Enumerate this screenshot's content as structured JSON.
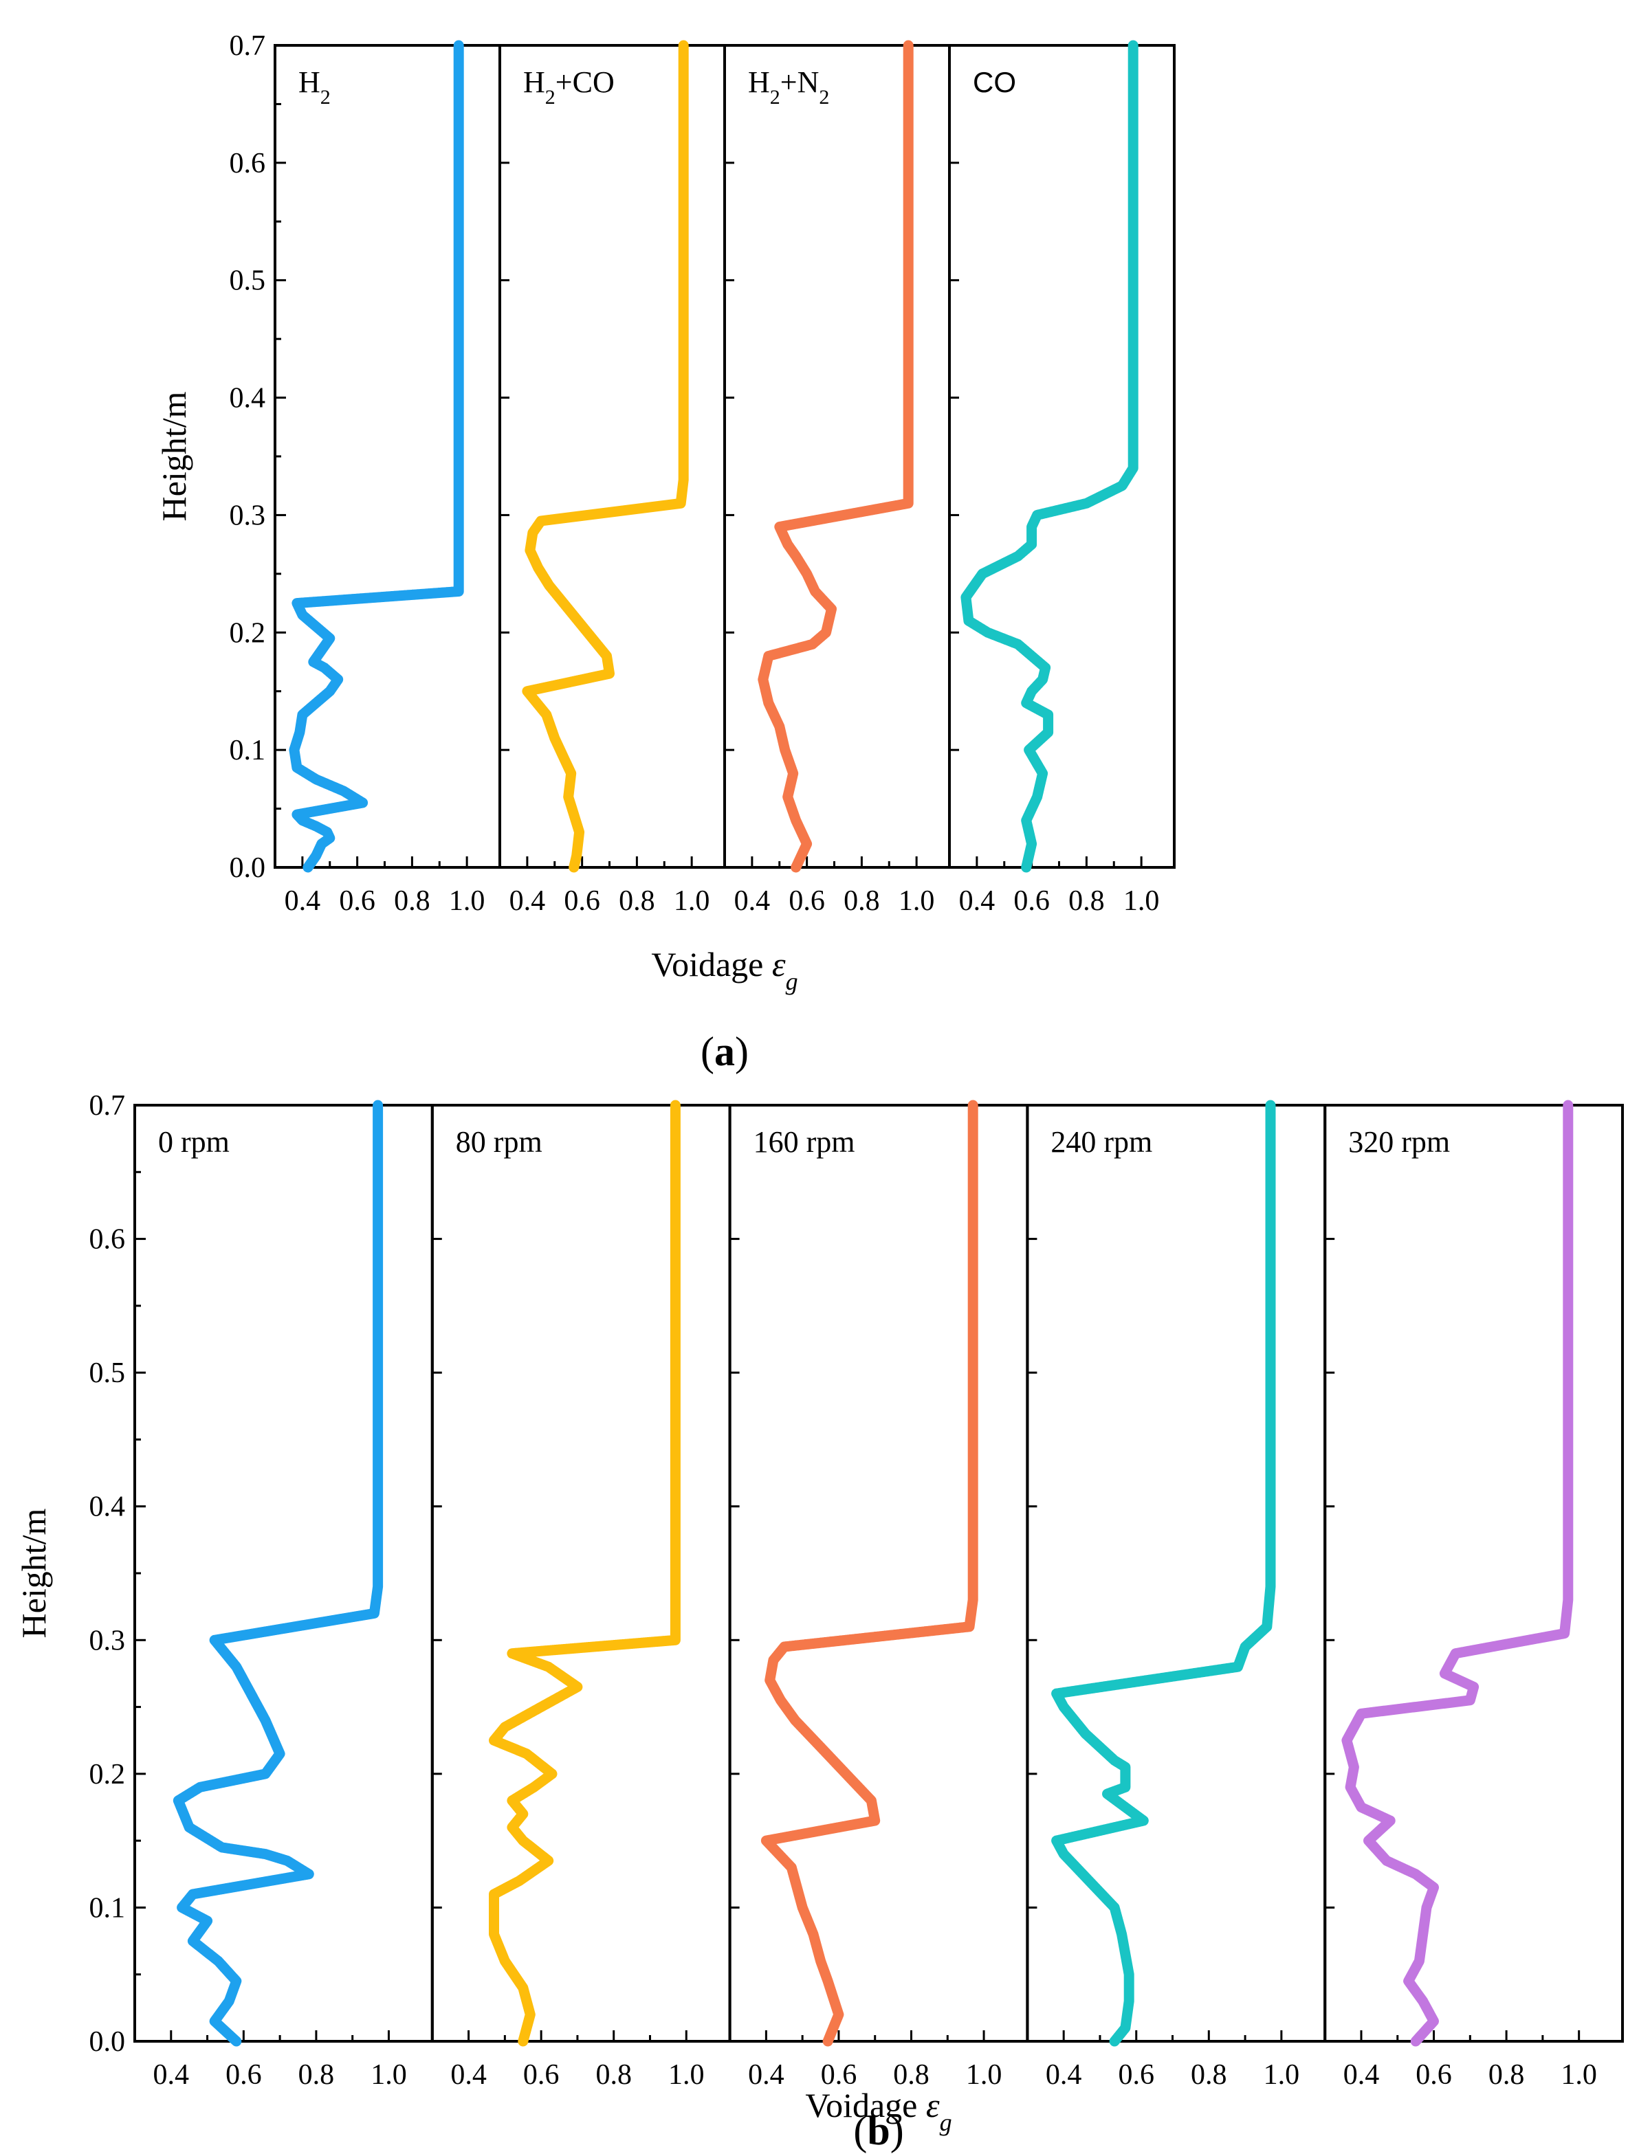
{
  "figure": {
    "caption_a": "a",
    "caption_b": "b"
  },
  "chart_data": [
    {
      "type": "line",
      "id": "a",
      "caption": "a",
      "xlabel": "Voidage",
      "xlabel_symbol": "ε",
      "xlabel_subscript": "g",
      "ylabel": "Height/m",
      "ylim": [
        0,
        0.7
      ],
      "yticks": [
        "0.0",
        "0.1",
        "0.2",
        "0.3",
        "0.4",
        "0.5",
        "0.6",
        "0.7"
      ],
      "xticks": [
        "0.4",
        "0.6",
        "0.8",
        "1.0"
      ],
      "xlim": [
        0.3,
        1.12
      ],
      "panels": [
        {
          "label_main": "H",
          "label_parts": [
            {
              "t": "H"
            },
            {
              "t": "2",
              "sub": true
            }
          ],
          "font": "serif",
          "color": "#1ea1ee",
          "points": [
            [
              0.42,
              0.0
            ],
            [
              0.45,
              0.01
            ],
            [
              0.47,
              0.02
            ],
            [
              0.5,
              0.025
            ],
            [
              0.49,
              0.03
            ],
            [
              0.45,
              0.035
            ],
            [
              0.4,
              0.04
            ],
            [
              0.38,
              0.045
            ],
            [
              0.62,
              0.055
            ],
            [
              0.55,
              0.065
            ],
            [
              0.45,
              0.075
            ],
            [
              0.38,
              0.085
            ],
            [
              0.37,
              0.1
            ],
            [
              0.39,
              0.115
            ],
            [
              0.4,
              0.13
            ],
            [
              0.45,
              0.14
            ],
            [
              0.5,
              0.15
            ],
            [
              0.53,
              0.16
            ],
            [
              0.48,
              0.17
            ],
            [
              0.44,
              0.175
            ],
            [
              0.47,
              0.185
            ],
            [
              0.5,
              0.195
            ],
            [
              0.45,
              0.205
            ],
            [
              0.4,
              0.215
            ],
            [
              0.38,
              0.225
            ],
            [
              0.97,
              0.235
            ],
            [
              0.97,
              0.26
            ],
            [
              0.97,
              0.4
            ],
            [
              0.97,
              0.7
            ]
          ]
        },
        {
          "label_main": "H+CO",
          "label_parts": [
            {
              "t": "H"
            },
            {
              "t": "2",
              "sub": true
            },
            {
              "t": "+CO"
            }
          ],
          "font": "serif",
          "color": "#fdbd0c",
          "points": [
            [
              0.57,
              0.0
            ],
            [
              0.58,
              0.01
            ],
            [
              0.59,
              0.03
            ],
            [
              0.57,
              0.045
            ],
            [
              0.55,
              0.06
            ],
            [
              0.56,
              0.08
            ],
            [
              0.53,
              0.095
            ],
            [
              0.5,
              0.11
            ],
            [
              0.47,
              0.13
            ],
            [
              0.4,
              0.15
            ],
            [
              0.5,
              0.155
            ],
            [
              0.7,
              0.165
            ],
            [
              0.69,
              0.18
            ],
            [
              0.62,
              0.2
            ],
            [
              0.55,
              0.22
            ],
            [
              0.48,
              0.24
            ],
            [
              0.44,
              0.255
            ],
            [
              0.41,
              0.27
            ],
            [
              0.42,
              0.285
            ],
            [
              0.45,
              0.295
            ],
            [
              0.96,
              0.31
            ],
            [
              0.97,
              0.33
            ],
            [
              0.97,
              0.4
            ],
            [
              0.97,
              0.7
            ]
          ]
        },
        {
          "label_main": "H+N",
          "label_parts": [
            {
              "t": "H"
            },
            {
              "t": "2",
              "sub": true
            },
            {
              "t": "+N"
            },
            {
              "t": "2",
              "sub": true
            }
          ],
          "font": "serif",
          "color": "#f5784a",
          "points": [
            [
              0.56,
              0.0
            ],
            [
              0.6,
              0.02
            ],
            [
              0.56,
              0.04
            ],
            [
              0.53,
              0.06
            ],
            [
              0.55,
              0.08
            ],
            [
              0.52,
              0.1
            ],
            [
              0.5,
              0.12
            ],
            [
              0.46,
              0.14
            ],
            [
              0.44,
              0.16
            ],
            [
              0.46,
              0.18
            ],
            [
              0.62,
              0.19
            ],
            [
              0.67,
              0.2
            ],
            [
              0.69,
              0.22
            ],
            [
              0.63,
              0.235
            ],
            [
              0.6,
              0.25
            ],
            [
              0.56,
              0.265
            ],
            [
              0.53,
              0.275
            ],
            [
              0.5,
              0.29
            ],
            [
              0.97,
              0.31
            ],
            [
              0.97,
              0.33
            ],
            [
              0.97,
              0.4
            ],
            [
              0.97,
              0.7
            ]
          ]
        },
        {
          "label_main": "CO",
          "label_parts": [
            {
              "t": "CO"
            }
          ],
          "font": "sans",
          "color": "#19c4c4",
          "points": [
            [
              0.58,
              0.0
            ],
            [
              0.6,
              0.02
            ],
            [
              0.58,
              0.04
            ],
            [
              0.62,
              0.06
            ],
            [
              0.64,
              0.08
            ],
            [
              0.59,
              0.1
            ],
            [
              0.66,
              0.115
            ],
            [
              0.66,
              0.13
            ],
            [
              0.58,
              0.14
            ],
            [
              0.6,
              0.15
            ],
            [
              0.64,
              0.16
            ],
            [
              0.65,
              0.17
            ],
            [
              0.55,
              0.19
            ],
            [
              0.44,
              0.2
            ],
            [
              0.37,
              0.21
            ],
            [
              0.36,
              0.23
            ],
            [
              0.42,
              0.25
            ],
            [
              0.55,
              0.265
            ],
            [
              0.6,
              0.275
            ],
            [
              0.6,
              0.29
            ],
            [
              0.62,
              0.3
            ],
            [
              0.8,
              0.31
            ],
            [
              0.93,
              0.325
            ],
            [
              0.97,
              0.34
            ],
            [
              0.97,
              0.4
            ],
            [
              0.97,
              0.7
            ]
          ]
        }
      ]
    },
    {
      "type": "line",
      "id": "b",
      "caption": "b",
      "xlabel": "Voidage",
      "xlabel_symbol": "ε",
      "xlabel_subscript": "g",
      "ylabel": "Height/m",
      "ylim": [
        0,
        0.7
      ],
      "yticks": [
        "0.0",
        "0.1",
        "0.2",
        "0.3",
        "0.4",
        "0.5",
        "0.6",
        "0.7"
      ],
      "xticks": [
        "0.4",
        "0.6",
        "0.8",
        "1.0"
      ],
      "xlim": [
        0.3,
        1.12
      ],
      "panels": [
        {
          "label_main": "0 rpm",
          "label_parts": [
            {
              "t": "0 rpm"
            }
          ],
          "font": "serif",
          "color": "#1ea1ee",
          "points": [
            [
              0.58,
              0.0
            ],
            [
              0.52,
              0.015
            ],
            [
              0.56,
              0.03
            ],
            [
              0.58,
              0.045
            ],
            [
              0.53,
              0.06
            ],
            [
              0.46,
              0.075
            ],
            [
              0.5,
              0.09
            ],
            [
              0.43,
              0.1
            ],
            [
              0.46,
              0.11
            ],
            [
              0.78,
              0.125
            ],
            [
              0.72,
              0.135
            ],
            [
              0.66,
              0.14
            ],
            [
              0.54,
              0.145
            ],
            [
              0.45,
              0.16
            ],
            [
              0.42,
              0.18
            ],
            [
              0.48,
              0.19
            ],
            [
              0.66,
              0.2
            ],
            [
              0.7,
              0.215
            ],
            [
              0.66,
              0.24
            ],
            [
              0.62,
              0.26
            ],
            [
              0.58,
              0.28
            ],
            [
              0.52,
              0.3
            ],
            [
              0.96,
              0.32
            ],
            [
              0.97,
              0.34
            ],
            [
              0.97,
              0.4
            ],
            [
              0.97,
              0.7
            ]
          ]
        },
        {
          "label_main": "80 rpm",
          "label_parts": [
            {
              "t": "80 rpm"
            }
          ],
          "font": "serif",
          "color": "#fdbd0c",
          "points": [
            [
              0.55,
              0.0
            ],
            [
              0.57,
              0.02
            ],
            [
              0.55,
              0.04
            ],
            [
              0.5,
              0.06
            ],
            [
              0.47,
              0.08
            ],
            [
              0.47,
              0.11
            ],
            [
              0.54,
              0.12
            ],
            [
              0.62,
              0.135
            ],
            [
              0.55,
              0.15
            ],
            [
              0.52,
              0.16
            ],
            [
              0.55,
              0.17
            ],
            [
              0.52,
              0.18
            ],
            [
              0.58,
              0.19
            ],
            [
              0.63,
              0.2
            ],
            [
              0.56,
              0.215
            ],
            [
              0.47,
              0.225
            ],
            [
              0.5,
              0.235
            ],
            [
              0.6,
              0.25
            ],
            [
              0.7,
              0.265
            ],
            [
              0.62,
              0.28
            ],
            [
              0.52,
              0.29
            ],
            [
              0.97,
              0.3
            ],
            [
              0.97,
              0.33
            ],
            [
              0.97,
              0.4
            ],
            [
              0.97,
              0.7
            ]
          ]
        },
        {
          "label_main": "160 rpm",
          "label_parts": [
            {
              "t": "160 rpm"
            }
          ],
          "font": "serif",
          "color": "#f5784a",
          "points": [
            [
              0.57,
              0.0
            ],
            [
              0.6,
              0.02
            ],
            [
              0.57,
              0.045
            ],
            [
              0.55,
              0.06
            ],
            [
              0.53,
              0.08
            ],
            [
              0.5,
              0.1
            ],
            [
              0.47,
              0.13
            ],
            [
              0.4,
              0.15
            ],
            [
              0.5,
              0.155
            ],
            [
              0.7,
              0.165
            ],
            [
              0.69,
              0.18
            ],
            [
              0.62,
              0.2
            ],
            [
              0.55,
              0.22
            ],
            [
              0.48,
              0.24
            ],
            [
              0.44,
              0.255
            ],
            [
              0.41,
              0.27
            ],
            [
              0.42,
              0.285
            ],
            [
              0.45,
              0.295
            ],
            [
              0.96,
              0.31
            ],
            [
              0.97,
              0.33
            ],
            [
              0.97,
              0.4
            ],
            [
              0.97,
              0.7
            ]
          ]
        },
        {
          "label_main": "240 rpm",
          "label_parts": [
            {
              "t": "240 rpm"
            }
          ],
          "font": "serif",
          "color": "#19c4c4",
          "points": [
            [
              0.54,
              0.0
            ],
            [
              0.57,
              0.01
            ],
            [
              0.58,
              0.03
            ],
            [
              0.58,
              0.05
            ],
            [
              0.56,
              0.08
            ],
            [
              0.54,
              0.1
            ],
            [
              0.47,
              0.12
            ],
            [
              0.4,
              0.14
            ],
            [
              0.38,
              0.15
            ],
            [
              0.62,
              0.165
            ],
            [
              0.57,
              0.175
            ],
            [
              0.52,
              0.185
            ],
            [
              0.57,
              0.19
            ],
            [
              0.57,
              0.205
            ],
            [
              0.54,
              0.21
            ],
            [
              0.46,
              0.23
            ],
            [
              0.4,
              0.25
            ],
            [
              0.38,
              0.26
            ],
            [
              0.88,
              0.28
            ],
            [
              0.9,
              0.295
            ],
            [
              0.96,
              0.31
            ],
            [
              0.97,
              0.34
            ],
            [
              0.97,
              0.4
            ],
            [
              0.97,
              0.7
            ]
          ]
        },
        {
          "label_main": "320 rpm",
          "label_parts": [
            {
              "t": "320 rpm"
            }
          ],
          "font": "serif",
          "color": "#c277e0",
          "points": [
            [
              0.55,
              0.0
            ],
            [
              0.6,
              0.015
            ],
            [
              0.57,
              0.03
            ],
            [
              0.53,
              0.045
            ],
            [
              0.56,
              0.06
            ],
            [
              0.57,
              0.08
            ],
            [
              0.58,
              0.1
            ],
            [
              0.6,
              0.115
            ],
            [
              0.55,
              0.125
            ],
            [
              0.47,
              0.135
            ],
            [
              0.42,
              0.15
            ],
            [
              0.48,
              0.165
            ],
            [
              0.44,
              0.17
            ],
            [
              0.4,
              0.175
            ],
            [
              0.37,
              0.19
            ],
            [
              0.38,
              0.205
            ],
            [
              0.36,
              0.225
            ],
            [
              0.4,
              0.245
            ],
            [
              0.7,
              0.255
            ],
            [
              0.71,
              0.265
            ],
            [
              0.63,
              0.275
            ],
            [
              0.66,
              0.29
            ],
            [
              0.96,
              0.305
            ],
            [
              0.97,
              0.33
            ],
            [
              0.97,
              0.4
            ],
            [
              0.97,
              0.7
            ]
          ]
        }
      ]
    }
  ]
}
